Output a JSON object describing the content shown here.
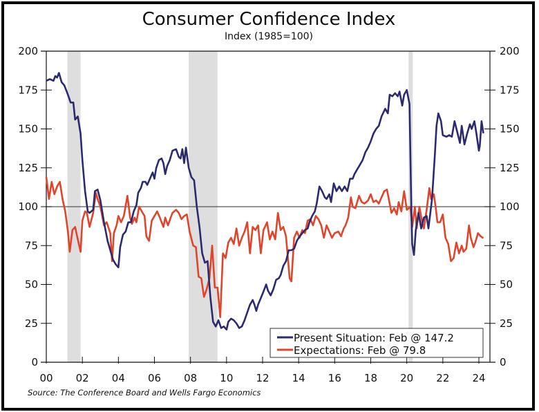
{
  "chart_data": {
    "type": "line",
    "title": "Consumer Confidence Index",
    "subtitle": "Index (1985=100)",
    "xlabel": "",
    "ylabel": "",
    "source": "Source: The Conference Board and Wells Fargo Economics",
    "xlim": [
      2000,
      2024.9
    ],
    "ylim": [
      0,
      200
    ],
    "yticks": [
      0,
      25,
      50,
      75,
      100,
      125,
      150,
      175,
      200
    ],
    "ytick_labels": [
      "0",
      "25",
      "50",
      "75",
      "100",
      "125",
      "150",
      "175",
      "200"
    ],
    "xticks": [
      2000,
      2002,
      2004,
      2006,
      2008,
      2010,
      2012,
      2014,
      2016,
      2018,
      2020,
      2022,
      2024
    ],
    "xtick_labels": [
      "00",
      "02",
      "04",
      "06",
      "08",
      "10",
      "12",
      "14",
      "16",
      "18",
      "20",
      "22",
      "24"
    ],
    "reference_line": 100,
    "grid": false,
    "legend_position": "bottom-right",
    "recessions": [
      [
        2001.17,
        2001.9
      ],
      [
        2007.9,
        2009.5
      ],
      [
        2020.1,
        2020.33
      ]
    ],
    "colors": {
      "present": "#2b2a6e",
      "expectations": "#e0442a",
      "recession": "#dedede",
      "refline": "#555555"
    },
    "series": [
      {
        "name": "Present Situation",
        "legend_label": "Present Situation: Feb @ 147.2",
        "color": "#2b2a6e",
        "x": [
          2000.0,
          2000.2,
          2000.4,
          2000.5,
          2000.6,
          2000.7,
          2000.85,
          2001.0,
          2001.2,
          2001.35,
          2001.5,
          2001.6,
          2001.75,
          2001.9,
          2002.0,
          2002.15,
          2002.3,
          2002.4,
          2002.6,
          2002.7,
          2002.85,
          2003.0,
          2003.2,
          2003.4,
          2003.55,
          2003.7,
          2003.85,
          2004.0,
          2004.1,
          2004.25,
          2004.4,
          2004.55,
          2004.7,
          2004.85,
          2005.0,
          2005.1,
          2005.25,
          2005.35,
          2005.5,
          2005.6,
          2005.75,
          2005.9,
          2006.0,
          2006.1,
          2006.25,
          2006.4,
          2006.5,
          2006.6,
          2006.7,
          2006.85,
          2007.0,
          2007.2,
          2007.35,
          2007.45,
          2007.55,
          2007.65,
          2007.75,
          2007.9,
          2008.05,
          2008.2,
          2008.35,
          2008.5,
          2008.65,
          2008.8,
          2008.95,
          2009.1,
          2009.25,
          2009.4,
          2009.55,
          2009.7,
          2009.85,
          2010.0,
          2010.1,
          2010.25,
          2010.4,
          2010.55,
          2010.7,
          2010.85,
          2011.0,
          2011.15,
          2011.3,
          2011.45,
          2011.55,
          2011.65,
          2011.75,
          2012.0,
          2012.2,
          2012.3,
          2012.45,
          2012.6,
          2012.75,
          2012.9,
          2013.0,
          2013.15,
          2013.3,
          2013.45,
          2013.6,
          2013.75,
          2013.9,
          2014.0,
          2014.2,
          2014.35,
          2014.5,
          2014.6,
          2014.75,
          2014.9,
          2015.0,
          2015.15,
          2015.3,
          2015.45,
          2015.55,
          2015.7,
          2015.8,
          2015.95,
          2016.1,
          2016.25,
          2016.4,
          2016.55,
          2016.7,
          2016.85,
          2017.0,
          2017.1,
          2017.25,
          2017.4,
          2017.55,
          2017.7,
          2017.85,
          2018.0,
          2018.15,
          2018.3,
          2018.45,
          2018.6,
          2018.8,
          2018.95,
          2019.05,
          2019.2,
          2019.35,
          2019.5,
          2019.6,
          2019.75,
          2019.85,
          2020.0,
          2020.15,
          2020.25,
          2020.3,
          2020.4,
          2020.5,
          2020.65,
          2020.8,
          2020.95,
          2021.1,
          2021.2,
          2021.4,
          2021.55,
          2021.65,
          2021.75,
          2021.9,
          2022.0,
          2022.2,
          2022.35,
          2022.5,
          2022.65,
          2022.8,
          2022.95,
          2023.05,
          2023.2,
          2023.35,
          2023.5,
          2023.6,
          2023.75,
          2023.85,
          2024.0,
          2024.05,
          2024.15,
          2024.25
        ],
        "values": [
          181,
          182,
          181,
          184,
          183,
          186,
          180,
          178,
          172,
          167,
          167,
          156,
          158,
          147,
          130,
          110,
          97,
          96,
          98,
          110,
          111,
          104,
          90,
          78,
          72,
          66,
          63,
          61,
          74,
          82,
          84,
          90,
          90,
          97,
          101,
          109,
          112,
          116,
          116,
          114,
          118,
          122,
          118,
          125,
          130,
          131,
          128,
          121,
          126,
          130,
          136,
          137,
          132,
          131,
          137,
          128,
          138,
          125,
          119,
          117,
          100,
          87,
          70,
          64,
          65,
          42,
          26,
          23,
          27,
          22,
          23,
          21,
          26,
          28,
          27,
          25,
          22,
          23,
          27,
          32,
          37,
          40,
          37,
          33,
          37,
          44,
          50,
          46,
          43,
          47,
          53,
          54,
          56,
          62,
          65,
          72,
          72,
          73,
          78,
          80,
          83,
          85,
          86,
          90,
          94,
          97,
          102,
          113,
          110,
          106,
          105,
          108,
          103,
          115,
          110,
          113,
          110,
          113,
          110,
          118,
          118,
          121,
          124,
          127,
          130,
          135,
          138,
          142,
          147,
          150,
          152,
          158,
          163,
          160,
          172,
          171,
          173,
          171,
          174,
          165,
          172,
          175,
          166,
          100,
          76,
          69,
          85,
          96,
          86,
          93,
          94,
          86,
          105,
          132,
          152,
          160,
          155,
          146,
          145,
          146,
          145,
          155,
          148,
          141,
          152,
          140,
          147,
          153,
          150,
          155,
          148,
          136,
          139,
          155,
          147.2
        ]
      },
      {
        "name": "Expectations",
        "legend_label": "Expectations: Feb @ 79.8",
        "color": "#e0442a",
        "x": [
          2000.0,
          2000.15,
          2000.3,
          2000.45,
          2000.6,
          2000.75,
          2000.9,
          2001.05,
          2001.2,
          2001.3,
          2001.45,
          2001.6,
          2001.75,
          2001.9,
          2002.0,
          2002.15,
          2002.25,
          2002.4,
          2002.6,
          2002.75,
          2002.85,
          2003.0,
          2003.2,
          2003.35,
          2003.55,
          2003.65,
          2003.75,
          2003.9,
          2004.0,
          2004.15,
          2004.3,
          2004.5,
          2004.65,
          2004.75,
          2004.9,
          2005.0,
          2005.15,
          2005.3,
          2005.45,
          2005.55,
          2005.7,
          2005.85,
          2006.0,
          2006.15,
          2006.3,
          2006.5,
          2006.6,
          2006.75,
          2006.9,
          2007.0,
          2007.2,
          2007.35,
          2007.5,
          2007.65,
          2007.8,
          2007.95,
          2008.15,
          2008.3,
          2008.45,
          2008.6,
          2008.75,
          2008.9,
          2009.05,
          2009.2,
          2009.35,
          2009.5,
          2009.65,
          2009.8,
          2009.95,
          2010.1,
          2010.25,
          2010.4,
          2010.55,
          2010.7,
          2010.85,
          2011.0,
          2011.15,
          2011.3,
          2011.45,
          2011.6,
          2011.75,
          2011.9,
          2012.05,
          2012.25,
          2012.4,
          2012.55,
          2012.7,
          2012.85,
          2013.0,
          2013.15,
          2013.3,
          2013.5,
          2013.6,
          2013.75,
          2013.9,
          2014.05,
          2014.2,
          2014.35,
          2014.5,
          2014.65,
          2014.8,
          2014.95,
          2015.1,
          2015.25,
          2015.4,
          2015.55,
          2015.7,
          2015.85,
          2016.0,
          2016.2,
          2016.35,
          2016.5,
          2016.6,
          2016.75,
          2016.9,
          2017.0,
          2017.15,
          2017.35,
          2017.5,
          2017.65,
          2017.85,
          2018.0,
          2018.15,
          2018.3,
          2018.45,
          2018.6,
          2018.75,
          2018.9,
          2019.0,
          2019.15,
          2019.3,
          2019.45,
          2019.55,
          2019.7,
          2019.85,
          2020.0,
          2020.2,
          2020.3,
          2020.45,
          2020.55,
          2020.7,
          2020.85,
          2020.95,
          2021.1,
          2021.25,
          2021.35,
          2021.5,
          2021.6,
          2021.7,
          2021.85,
          2022.0,
          2022.15,
          2022.3,
          2022.45,
          2022.6,
          2022.75,
          2022.9,
          2023.05,
          2023.15,
          2023.3,
          2023.45,
          2023.55,
          2023.7,
          2023.8,
          2023.95,
          2024.1,
          2024.25
        ],
        "values": [
          119,
          105,
          116,
          108,
          113,
          116,
          105,
          97,
          84,
          71,
          85,
          87,
          79,
          71,
          91,
          97,
          96,
          87,
          96,
          109,
          105,
          100,
          88,
          90,
          83,
          65,
          83,
          88,
          94,
          90,
          94,
          107,
          93,
          89,
          93,
          90,
          100,
          97,
          94,
          81,
          78,
          91,
          94,
          97,
          93,
          87,
          93,
          88,
          93,
          96,
          98,
          96,
          92,
          94,
          95,
          84,
          75,
          74,
          55,
          54,
          42,
          47,
          54,
          75,
          48,
          48,
          29,
          70,
          67,
          77,
          80,
          76,
          86,
          75,
          80,
          84,
          90,
          70,
          87,
          85,
          88,
          70,
          85,
          90,
          79,
          84,
          79,
          96,
          85,
          87,
          81,
          54,
          52,
          80,
          84,
          80,
          85,
          83,
          91,
          92,
          88,
          94,
          92,
          88,
          80,
          88,
          84,
          80,
          83,
          84,
          81,
          86,
          88,
          93,
          106,
          100,
          99,
          107,
          103,
          102,
          104,
          108,
          103,
          104,
          102,
          106,
          110,
          111,
          105,
          96,
          99,
          95,
          103,
          97,
          110,
          98,
          100,
          87,
          100,
          86,
          100,
          90,
          86,
          98,
          112,
          105,
          108,
          100,
          90,
          90,
          95,
          80,
          76,
          65,
          67,
          77,
          70,
          75,
          71,
          73,
          88,
          80,
          74,
          77,
          83,
          81,
          79.8
        ]
      }
    ]
  }
}
